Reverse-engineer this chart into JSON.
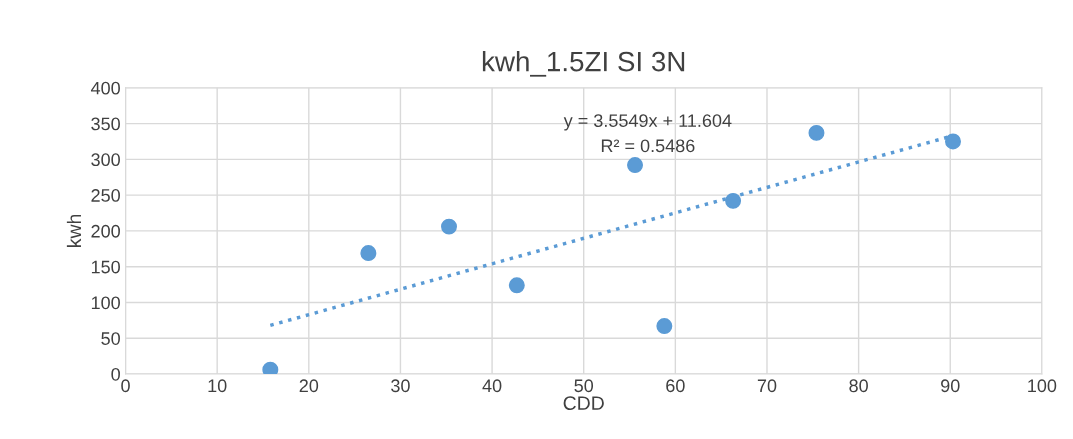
{
  "chart_data": {
    "type": "scatter",
    "title": "kwh_1.5ZI SI 3N",
    "xlabel": "CDD",
    "ylabel": "kwh",
    "xlim": [
      0,
      100
    ],
    "xticks": [
      0,
      10,
      20,
      30,
      40,
      50,
      60,
      70,
      80,
      90,
      100
    ],
    "ylim": [
      0,
      400
    ],
    "yticks": [
      0,
      50,
      100,
      150,
      200,
      250,
      300,
      350,
      400
    ],
    "grid": true,
    "marker": "circle",
    "annotations": [
      "y = 3.5549x + 11.604",
      "R² = 0.5486"
    ],
    "series": [
      {
        "color": "#5b9bd5",
        "x": [
          15.8,
          26.5,
          35.3,
          42.7,
          55.6,
          58.8,
          66.3,
          75.4,
          90.3
        ],
        "values": [
          6,
          169,
          206,
          124,
          292,
          67,
          242,
          337,
          325
        ]
      },
      {
        "type": "line",
        "color": "#5b9bd5",
        "line_style": "dotted",
        "marker": "none",
        "x": [
          15.8,
          90.3
        ],
        "values": [
          68,
          333
        ]
      }
    ]
  }
}
